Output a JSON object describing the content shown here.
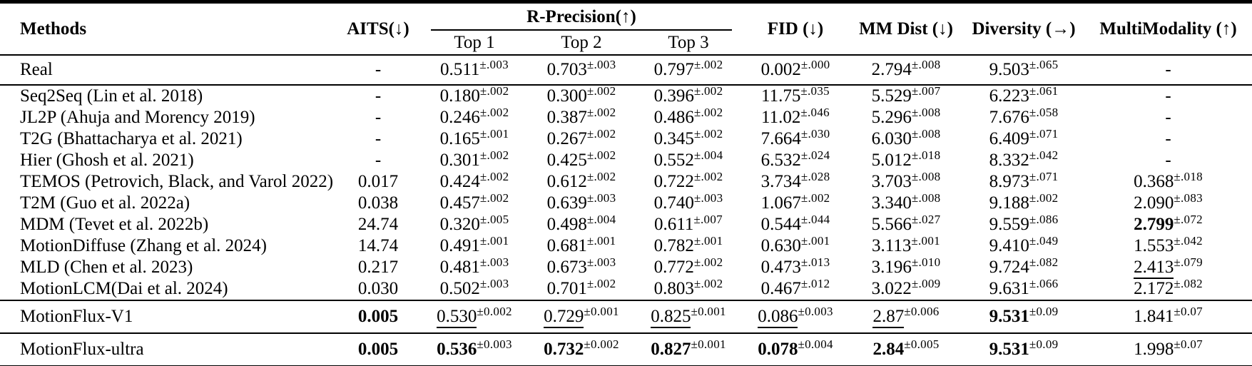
{
  "table": {
    "headers": {
      "methods": "Methods",
      "aits": "AITS(↓)",
      "rprecision": "R-Precision(↑)",
      "top1": "Top 1",
      "top2": "Top 2",
      "top3": "Top 3",
      "fid": "FID (↓)",
      "mm_dist": "MM Dist (↓)",
      "diversity": "Diversity (→)",
      "multimodality": "MultiModality (↑)"
    },
    "columns": [
      "aits",
      "top1",
      "top2",
      "top3",
      "fid",
      "mm_dist",
      "diversity",
      "multimodality"
    ],
    "colors": {
      "text": "#000000",
      "background": "#ffffff",
      "rule": "#000000"
    },
    "rows": [
      {
        "method": "Real",
        "sep": true,
        "size": "real",
        "cells": [
          {
            "v": "-"
          },
          {
            "v": "0.511",
            "s": "±.003"
          },
          {
            "v": "0.703",
            "s": "±.003"
          },
          {
            "v": "0.797",
            "s": "±.002"
          },
          {
            "v": "0.002",
            "s": "±.000"
          },
          {
            "v": "2.794",
            "s": "±.008"
          },
          {
            "v": "9.503",
            "s": "±.065"
          },
          {
            "v": "-"
          }
        ]
      },
      {
        "method": "Seq2Seq (Lin et al. 2018)",
        "cells": [
          {
            "v": "-"
          },
          {
            "v": "0.180",
            "s": "±.002"
          },
          {
            "v": "0.300",
            "s": "±.002"
          },
          {
            "v": "0.396",
            "s": "±.002"
          },
          {
            "v": "11.75",
            "s": "±.035"
          },
          {
            "v": "5.529",
            "s": "±.007"
          },
          {
            "v": "6.223",
            "s": "±.061"
          },
          {
            "v": "-"
          }
        ]
      },
      {
        "method": "JL2P (Ahuja and Morency 2019)",
        "cells": [
          {
            "v": "-"
          },
          {
            "v": "0.246",
            "s": "±.002"
          },
          {
            "v": "0.387",
            "s": "±.002"
          },
          {
            "v": "0.486",
            "s": "±.002"
          },
          {
            "v": "11.02",
            "s": "±.046"
          },
          {
            "v": "5.296",
            "s": "±.008"
          },
          {
            "v": "7.676",
            "s": "±.058"
          },
          {
            "v": "-"
          }
        ]
      },
      {
        "method": "T2G (Bhattacharya et al. 2021)",
        "cells": [
          {
            "v": "-"
          },
          {
            "v": "0.165",
            "s": "±.001"
          },
          {
            "v": "0.267",
            "s": "±.002"
          },
          {
            "v": "0.345",
            "s": "±.002"
          },
          {
            "v": "7.664",
            "s": "±.030"
          },
          {
            "v": "6.030",
            "s": "±.008"
          },
          {
            "v": "6.409",
            "s": "±.071"
          },
          {
            "v": "-"
          }
        ]
      },
      {
        "method": "Hier (Ghosh et al. 2021)",
        "cells": [
          {
            "v": "-"
          },
          {
            "v": "0.301",
            "s": "±.002"
          },
          {
            "v": "0.425",
            "s": "±.002"
          },
          {
            "v": "0.552",
            "s": "±.004"
          },
          {
            "v": "6.532",
            "s": "±.024"
          },
          {
            "v": "5.012",
            "s": "±.018"
          },
          {
            "v": "8.332",
            "s": "±.042"
          },
          {
            "v": "-"
          }
        ]
      },
      {
        "method": "TEMOS (Petrovich, Black, and Varol 2022)",
        "cells": [
          {
            "v": "0.017"
          },
          {
            "v": "0.424",
            "s": "±.002"
          },
          {
            "v": "0.612",
            "s": "±.002"
          },
          {
            "v": "0.722",
            "s": "±.002"
          },
          {
            "v": "3.734",
            "s": "±.028"
          },
          {
            "v": "3.703",
            "s": "±.008"
          },
          {
            "v": "8.973",
            "s": "±.071"
          },
          {
            "v": "0.368",
            "s": "±.018"
          }
        ]
      },
      {
        "method": "T2M (Guo et al. 2022a)",
        "cells": [
          {
            "v": "0.038"
          },
          {
            "v": "0.457",
            "s": "±.002"
          },
          {
            "v": "0.639",
            "s": "±.003"
          },
          {
            "v": "0.740",
            "s": "±.003"
          },
          {
            "v": "1.067",
            "s": "±.002"
          },
          {
            "v": "3.340",
            "s": "±.008"
          },
          {
            "v": "9.188",
            "s": "±.002"
          },
          {
            "v": "2.090",
            "s": "±.083"
          }
        ]
      },
      {
        "method": "MDM (Tevet et al. 2022b)",
        "cells": [
          {
            "v": "24.74"
          },
          {
            "v": "0.320",
            "s": "±.005"
          },
          {
            "v": "0.498",
            "s": "±.004"
          },
          {
            "v": "0.611",
            "s": "±.007"
          },
          {
            "v": "0.544",
            "s": "±.044"
          },
          {
            "v": "5.566",
            "s": "±.027"
          },
          {
            "v": "9.559",
            "s": "±.086"
          },
          {
            "v": "2.799",
            "s": "±.072",
            "b": true
          }
        ]
      },
      {
        "method": "MotionDiffuse (Zhang et al. 2024)",
        "cells": [
          {
            "v": "14.74"
          },
          {
            "v": "0.491",
            "s": "±.001"
          },
          {
            "v": "0.681",
            "s": "±.001"
          },
          {
            "v": "0.782",
            "s": "±.001"
          },
          {
            "v": "0.630",
            "s": "±.001"
          },
          {
            "v": "3.113",
            "s": "±.001"
          },
          {
            "v": "9.410",
            "s": "±.049"
          },
          {
            "v": "1.553",
            "s": "±.042"
          }
        ]
      },
      {
        "method": "MLD (Chen et al. 2023)",
        "cells": [
          {
            "v": "0.217"
          },
          {
            "v": "0.481",
            "s": "±.003"
          },
          {
            "v": "0.673",
            "s": "±.003"
          },
          {
            "v": "0.772",
            "s": "±.002"
          },
          {
            "v": "0.473",
            "s": "±.013"
          },
          {
            "v": "3.196",
            "s": "±.010"
          },
          {
            "v": "9.724",
            "s": "±.082"
          },
          {
            "v": "2.413",
            "s": "±.079",
            "u": true
          }
        ]
      },
      {
        "method": "MotionLCM(Dai et al. 2024)",
        "sep": true,
        "cells": [
          {
            "v": "0.030"
          },
          {
            "v": "0.502",
            "s": "±.003"
          },
          {
            "v": "0.701",
            "s": "±.002"
          },
          {
            "v": "0.803",
            "s": "±.002"
          },
          {
            "v": "0.467",
            "s": "±.012"
          },
          {
            "v": "3.022",
            "s": "±.009"
          },
          {
            "v": "9.631",
            "s": "±.066"
          },
          {
            "v": "2.172",
            "s": "±.082"
          }
        ]
      },
      {
        "method": "MotionFlux-V1",
        "sep": true,
        "size": "flux",
        "cells": [
          {
            "v": "0.005",
            "b": true
          },
          {
            "v": "0.530",
            "s": "±0.002",
            "u": true
          },
          {
            "v": "0.729",
            "s": "±0.001",
            "u": true
          },
          {
            "v": "0.825",
            "s": "±0.001",
            "u": true
          },
          {
            "v": "0.086",
            "s": "±0.003",
            "u": true
          },
          {
            "v": "2.87",
            "s": "±0.006",
            "u": true
          },
          {
            "v": "9.531",
            "s": "±0.09",
            "b": true
          },
          {
            "v": "1.841",
            "s": "±0.07"
          }
        ]
      },
      {
        "method": "MotionFlux-ultra",
        "size": "flux",
        "cells": [
          {
            "v": "0.005",
            "b": true
          },
          {
            "v": "0.536",
            "s": "±0.003",
            "b": true
          },
          {
            "v": "0.732",
            "s": "±0.002",
            "b": true
          },
          {
            "v": "0.827",
            "s": "±0.001",
            "b": true
          },
          {
            "v": "0.078",
            "s": "±0.004",
            "b": true
          },
          {
            "v": "2.84",
            "s": "±0.005",
            "b": true
          },
          {
            "v": "9.531",
            "s": "±0.09",
            "b": true
          },
          {
            "v": "1.998",
            "s": "±0.07"
          }
        ]
      }
    ]
  }
}
